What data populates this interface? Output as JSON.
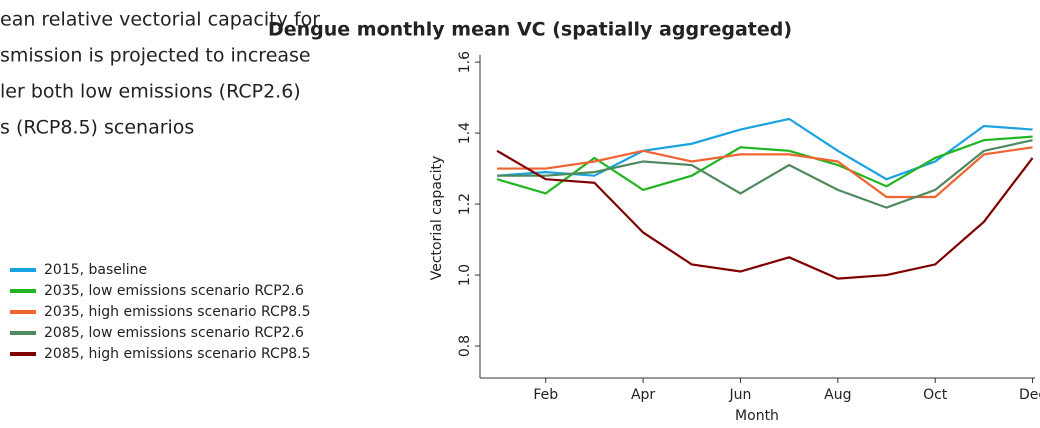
{
  "text_lines": [
    "ean relative vectorial capacity for",
    "smission is projected to increase",
    "ler both low emissions (RCP2.6)",
    "s (RCP8.5) scenarios"
  ],
  "chart_data": {
    "type": "line",
    "title": "Dengue monthly mean VC (spatially aggregated)",
    "x_label": "Month",
    "y_label": "Vectorial capacity",
    "x": [
      1,
      2,
      3,
      4,
      5,
      6,
      7,
      8,
      9,
      10,
      11,
      12
    ],
    "xlim": [
      0.65,
      12.05
    ],
    "xticks": [
      {
        "value": 2,
        "label": "Feb"
      },
      {
        "value": 4,
        "label": "Apr"
      },
      {
        "value": 6,
        "label": "Jun"
      },
      {
        "value": 8,
        "label": "Aug"
      },
      {
        "value": 10,
        "label": "Oct"
      },
      {
        "value": 12,
        "label": "Dec"
      }
    ],
    "ylim": [
      0.71,
      1.62
    ],
    "yticks": [
      {
        "value": 0.8,
        "label": "0.8"
      },
      {
        "value": 1.0,
        "label": "1.0"
      },
      {
        "value": 1.2,
        "label": "1.2"
      },
      {
        "value": 1.4,
        "label": "1.4"
      },
      {
        "value": 1.6,
        "label": "1.6"
      }
    ],
    "series": [
      {
        "name": "2015, baseline",
        "color": "#1aa3e0",
        "values": [
          1.28,
          1.29,
          1.28,
          1.35,
          1.37,
          1.41,
          1.44,
          1.35,
          1.27,
          1.32,
          1.42,
          1.41
        ]
      },
      {
        "name": "2035, low emissions scenario RCP2.6",
        "color": "#22b522",
        "values": [
          1.27,
          1.23,
          1.33,
          1.24,
          1.28,
          1.36,
          1.35,
          1.31,
          1.25,
          1.33,
          1.38,
          1.39
        ]
      },
      {
        "name": "2035, high emissions scenario RCP8.5",
        "color": "#f06432",
        "values": [
          1.3,
          1.3,
          1.32,
          1.35,
          1.32,
          1.34,
          1.34,
          1.32,
          1.22,
          1.22,
          1.34,
          1.36
        ]
      },
      {
        "name": "2085, low emissions scenario RCP2.6",
        "color": "#4f8a5f",
        "values": [
          1.28,
          1.28,
          1.29,
          1.32,
          1.31,
          1.23,
          1.31,
          1.24,
          1.19,
          1.24,
          1.35,
          1.38
        ]
      },
      {
        "name": "2085, high emissions scenario RCP8.5",
        "color": "#800000",
        "values": [
          1.35,
          1.27,
          1.26,
          1.12,
          1.03,
          1.01,
          1.05,
          0.99,
          1.0,
          1.03,
          1.15,
          1.33
        ]
      }
    ]
  }
}
